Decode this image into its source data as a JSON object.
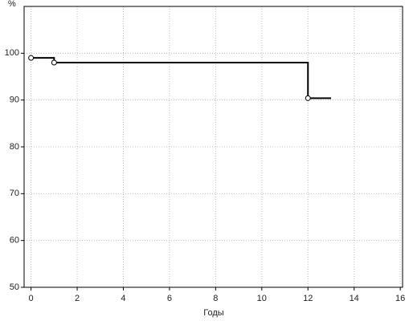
{
  "chart_data": {
    "type": "step",
    "ylabel": "%",
    "xlabel": "Годы",
    "x": [
      0,
      1,
      1,
      12,
      12,
      13
    ],
    "series": [
      {
        "color": "#000000",
        "values": [
          99,
          99,
          98,
          98,
          90.4,
          90.4
        ]
      }
    ],
    "markers": {
      "x": [
        0,
        1,
        12
      ],
      "values": [
        99,
        98,
        90.4
      ],
      "color": "#000000"
    },
    "xlim": [
      -0.3,
      16.1
    ],
    "ylim": [
      50,
      110
    ],
    "xticks": [
      0,
      2,
      4,
      6,
      8,
      10,
      12,
      14,
      16
    ],
    "yticks": [
      50,
      60,
      70,
      80,
      90,
      100
    ],
    "grid": true
  }
}
